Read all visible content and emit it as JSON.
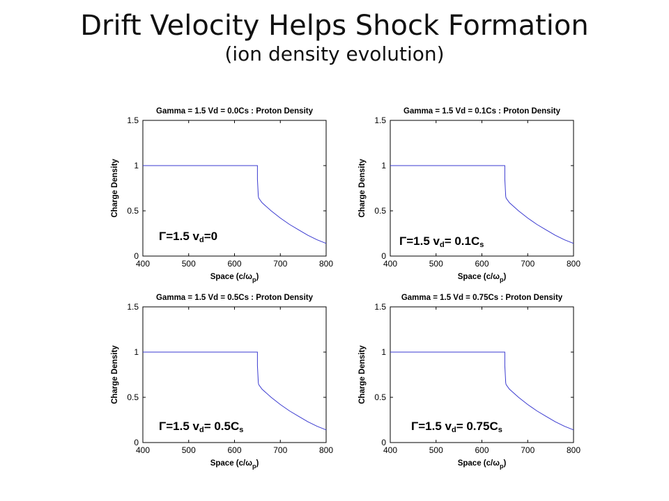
{
  "slide": {
    "title": "Drift Velocity Helps Shock Formation",
    "subtitle": "(ion density evolution)"
  },
  "line_color": "#3a3ad0",
  "chart_data": [
    {
      "type": "line",
      "title": "Gamma = 1.5 Vd = 0.0Cs : Proton Density",
      "xlabel": "Space (c/ωp)",
      "ylabel": "Charge Density",
      "xlim": [
        400,
        800
      ],
      "ylim": [
        0,
        1.5
      ],
      "xticks": [
        "400",
        "500",
        "600",
        "700",
        "800"
      ],
      "yticks": [
        "0",
        "0.5",
        "1",
        "1.5"
      ],
      "grid": false,
      "annotation": {
        "gamma": "Γ=1.5 v",
        "sub1": "d",
        "rest": "=0",
        "sub2": ""
      },
      "series": [
        {
          "x": [
            400,
            650,
            650,
            652,
            653,
            660,
            680,
            700,
            720,
            740,
            760,
            780,
            800
          ],
          "y": [
            1.0,
            1.0,
            0.85,
            0.66,
            0.64,
            0.59,
            0.5,
            0.42,
            0.35,
            0.29,
            0.23,
            0.18,
            0.14
          ]
        }
      ]
    },
    {
      "type": "line",
      "title": "Gamma = 1.5 Vd = 0.1Cs : Proton Density",
      "xlabel": "Space (c/ωp)",
      "ylabel": "Charge Density",
      "xlim": [
        400,
        800
      ],
      "ylim": [
        0,
        1.5
      ],
      "xticks": [
        "400",
        "500",
        "600",
        "700",
        "800"
      ],
      "yticks": [
        "0",
        "0.5",
        "1",
        "1.5"
      ],
      "grid": false,
      "annotation": {
        "gamma": "Γ=1.5 v",
        "sub1": "d",
        "rest": "= 0.1C",
        "sub2": "s"
      },
      "series": [
        {
          "x": [
            400,
            650,
            650,
            652,
            653,
            660,
            680,
            700,
            720,
            740,
            760,
            780,
            800
          ],
          "y": [
            1.0,
            1.0,
            0.85,
            0.66,
            0.64,
            0.59,
            0.5,
            0.42,
            0.35,
            0.29,
            0.23,
            0.18,
            0.14
          ]
        }
      ]
    },
    {
      "type": "line",
      "title": "Gamma = 1.5 Vd = 0.5Cs : Proton Density",
      "xlabel": "Space (c/ωp)",
      "ylabel": "Charge Density",
      "xlim": [
        400,
        800
      ],
      "ylim": [
        0,
        1.5
      ],
      "xticks": [
        "400",
        "500",
        "600",
        "700",
        "800"
      ],
      "yticks": [
        "0",
        "0.5",
        "1",
        "1.5"
      ],
      "grid": false,
      "annotation": {
        "gamma": "Γ=1.5 v",
        "sub1": "d",
        "rest": "= 0.5C",
        "sub2": "s"
      },
      "series": [
        {
          "x": [
            400,
            650,
            650,
            652,
            653,
            660,
            680,
            700,
            720,
            740,
            760,
            780,
            800
          ],
          "y": [
            1.0,
            1.0,
            0.85,
            0.66,
            0.64,
            0.59,
            0.5,
            0.42,
            0.35,
            0.29,
            0.23,
            0.18,
            0.14
          ]
        }
      ]
    },
    {
      "type": "line",
      "title": "Gamma = 1.5 Vd = 0.75Cs : Proton Density",
      "xlabel": "Space (c/ωp)",
      "ylabel": "Charge Density",
      "xlim": [
        400,
        800
      ],
      "ylim": [
        0,
        1.5
      ],
      "xticks": [
        "400",
        "500",
        "600",
        "700",
        "800"
      ],
      "yticks": [
        "0",
        "0.5",
        "1",
        "1.5"
      ],
      "grid": false,
      "annotation": {
        "gamma": "Γ=1.5 v",
        "sub1": "d",
        "rest": "= 0.75C",
        "sub2": "s"
      },
      "series": [
        {
          "x": [
            400,
            650,
            650,
            652,
            653,
            660,
            680,
            700,
            720,
            740,
            760,
            780,
            800
          ],
          "y": [
            1.0,
            1.0,
            0.85,
            0.66,
            0.64,
            0.59,
            0.5,
            0.42,
            0.35,
            0.29,
            0.23,
            0.18,
            0.14
          ]
        }
      ]
    }
  ]
}
